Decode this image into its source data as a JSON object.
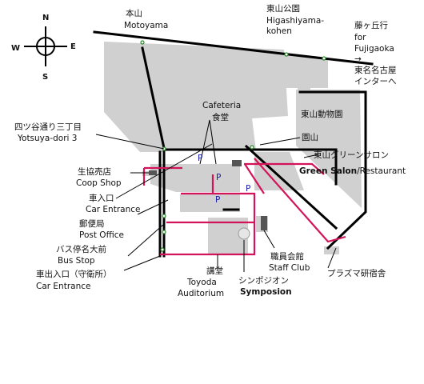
{
  "compass": {
    "n": "N",
    "s": "S",
    "e": "E",
    "w": "W"
  },
  "labels": {
    "motoyama_jp": "本山",
    "motoyama_en": "Motoyama",
    "higashi_jp": "東山公園",
    "higashi_en1": "Higashiyama-",
    "higashi_en2": "kohen",
    "fuji_jp": "藤ヶ丘行",
    "fuji_for": "for",
    "fuji_en": "Fujigaoka",
    "arrow": "→",
    "ic1": "東名名古屋",
    "ic2": "インターへ",
    "zoo": "東山動物園",
    "cafe_en": "Cafeteria",
    "cafe_jp": "食堂",
    "yotsuya_jp": "四ツ谷通り三丁目",
    "yotsuya_en": "Yotsuya-dori 3",
    "enzan": "園山",
    "green_jp": "東山グリーンサロン",
    "green_en": "Green Salon",
    "green_rest": "/Restaurant",
    "coop_jp": "生協売店",
    "coop_en": "Coop Shop",
    "carin_jp": "車入口",
    "carin_en": "Car Entrance",
    "post_jp": "郵便局",
    "post_en": "Post Office",
    "bus_jp": "バス停名大前",
    "bus_en": "Bus Stop",
    "carout_jp": "車出入口（守衛所）",
    "carout_en": "Car Entrance",
    "kodo_jp": "講堂",
    "kodo_en1": "Toyoda",
    "kodo_en2": "Auditorium",
    "symp_jp": "シンポジオン",
    "symp_en": "Symposion",
    "staff_jp": "職員会館",
    "staff_en": "Staff Club",
    "plasma": "プラズマ研宿舎",
    "p": "P"
  },
  "colors": {
    "route": "#d4145a",
    "building": "#d0d0d0",
    "road": "#000000",
    "parking": "#1a1ab0",
    "node": "#2a8a2a"
  }
}
